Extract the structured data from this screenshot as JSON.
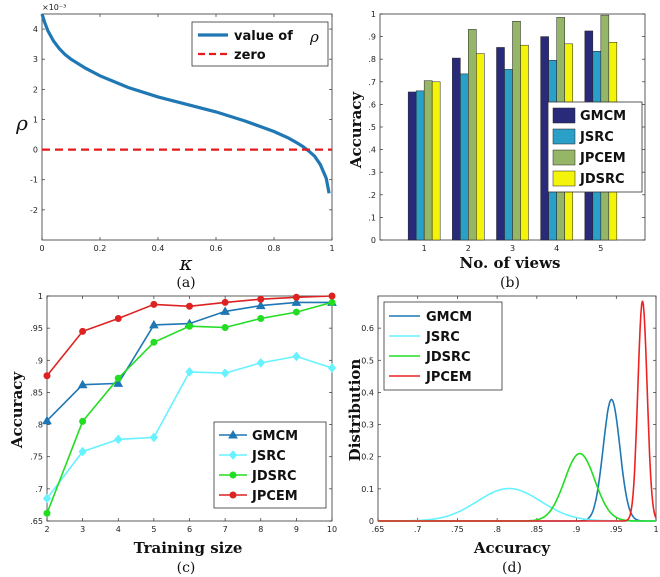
{
  "chart_data": [
    {
      "id": "a",
      "type": "line",
      "caption": "(a)",
      "xlabel": "κ",
      "ylabel": "ρ",
      "exponent_label": "×10⁻³",
      "xlim": [
        0,
        1
      ],
      "ylim": [
        -3,
        4.5
      ],
      "xticks": [
        0,
        0.2,
        0.4,
        0.6,
        0.8,
        1
      ],
      "yticks": [
        -2,
        -1,
        0,
        1,
        2,
        3,
        4
      ],
      "legend_position": "top-right",
      "series": [
        {
          "name": "value of",
          "legend_symbol": "ρ",
          "color": "#1f77b4",
          "style": "solid",
          "x": [
            0,
            0.01,
            0.02,
            0.04,
            0.06,
            0.08,
            0.1,
            0.15,
            0.2,
            0.3,
            0.4,
            0.5,
            0.6,
            0.7,
            0.8,
            0.85,
            0.88,
            0.9,
            0.92,
            0.94,
            0.96,
            0.98,
            0.99
          ],
          "y": [
            4.5,
            4.2,
            3.95,
            3.6,
            3.35,
            3.15,
            3.0,
            2.7,
            2.45,
            2.05,
            1.75,
            1.5,
            1.25,
            0.95,
            0.6,
            0.38,
            0.22,
            0.1,
            -0.05,
            -0.22,
            -0.5,
            -0.95,
            -1.45
          ]
        },
        {
          "name": "zero",
          "color": "#e41a1c",
          "style": "dashed",
          "x": [
            0,
            1
          ],
          "y": [
            0,
            0
          ]
        }
      ]
    },
    {
      "id": "b",
      "type": "bar",
      "caption": "(b)",
      "xlabel": "No. of views",
      "ylabel": "Accuracy",
      "categories": [
        "1",
        "2",
        "3",
        "4",
        "5"
      ],
      "ylim": [
        0,
        1
      ],
      "yticks": [
        0,
        0.1,
        0.2,
        0.3,
        0.4,
        0.5,
        0.6,
        0.7,
        0.8,
        0.9,
        1
      ],
      "legend_position": "right",
      "series": [
        {
          "name": "GMCM",
          "color": "#2a2a7a",
          "values": [
            0.655,
            0.805,
            0.852,
            0.9,
            0.925
          ]
        },
        {
          "name": "JSRC",
          "color": "#2aa0c8",
          "values": [
            0.66,
            0.735,
            0.755,
            0.795,
            0.835
          ]
        },
        {
          "name": "JPCEM",
          "color": "#95b567",
          "values": [
            0.705,
            0.932,
            0.968,
            0.985,
            0.995
          ]
        },
        {
          "name": "JDSRC",
          "color": "#f4f40a",
          "values": [
            0.7,
            0.825,
            0.862,
            0.868,
            0.875
          ]
        }
      ]
    },
    {
      "id": "c",
      "type": "line",
      "caption": "(c)",
      "xlabel": "Training size",
      "ylabel": "Accuracy",
      "xlim": [
        2,
        10
      ],
      "ylim": [
        0.65,
        1
      ],
      "xticks": [
        2,
        3,
        4,
        5,
        6,
        7,
        8,
        9,
        10
      ],
      "yticks": [
        0.65,
        0.7,
        0.75,
        0.8,
        0.85,
        0.9,
        0.95,
        1
      ],
      "legend_position": "bottom-right",
      "x": [
        2,
        3,
        4,
        5,
        6,
        7,
        8,
        9,
        10
      ],
      "series": [
        {
          "name": "GMCM",
          "color": "#1f77b4",
          "marker": "triangle",
          "values": [
            0.806,
            0.862,
            0.864,
            0.955,
            0.957,
            0.976,
            0.985,
            0.99,
            0.99
          ]
        },
        {
          "name": "JSRC",
          "color": "#66f2ff",
          "marker": "diamond",
          "values": [
            0.685,
            0.758,
            0.777,
            0.78,
            0.882,
            0.88,
            0.896,
            0.906,
            0.888
          ]
        },
        {
          "name": "JDSRC",
          "color": "#22dd22",
          "marker": "circle",
          "values": [
            0.662,
            0.805,
            0.872,
            0.928,
            0.953,
            0.951,
            0.965,
            0.975,
            0.99
          ]
        },
        {
          "name": "JPCEM",
          "color": "#dd2222",
          "marker": "circle",
          "values": [
            0.876,
            0.945,
            0.965,
            0.987,
            0.984,
            0.99,
            0.995,
            0.998,
            1.0
          ]
        }
      ]
    },
    {
      "id": "d",
      "type": "line",
      "caption": "(d)",
      "xlabel": "Accuracy",
      "ylabel": "Distribution",
      "xlim": [
        0.65,
        1
      ],
      "ylim": [
        0,
        0.7
      ],
      "xticks": [
        0.65,
        0.7,
        0.75,
        0.8,
        0.85,
        0.9,
        0.95,
        1
      ],
      "yticks": [
        0,
        0.1,
        0.2,
        0.3,
        0.4,
        0.5,
        0.6
      ],
      "legend_position": "top-left",
      "series": [
        {
          "name": "GMCM",
          "color": "#1f77b4",
          "mean": 0.944,
          "sd": 0.0105,
          "peak": 0.378
        },
        {
          "name": "JSRC",
          "color": "#66f2ff",
          "mean": 0.815,
          "sd": 0.04,
          "peak": 0.101
        },
        {
          "name": "JDSRC",
          "color": "#22dd22",
          "mean": 0.904,
          "sd": 0.019,
          "peak": 0.21
        },
        {
          "name": "JPCEM",
          "color": "#ee2222",
          "mean": 0.983,
          "sd": 0.0058,
          "peak": 0.685
        }
      ]
    }
  ]
}
